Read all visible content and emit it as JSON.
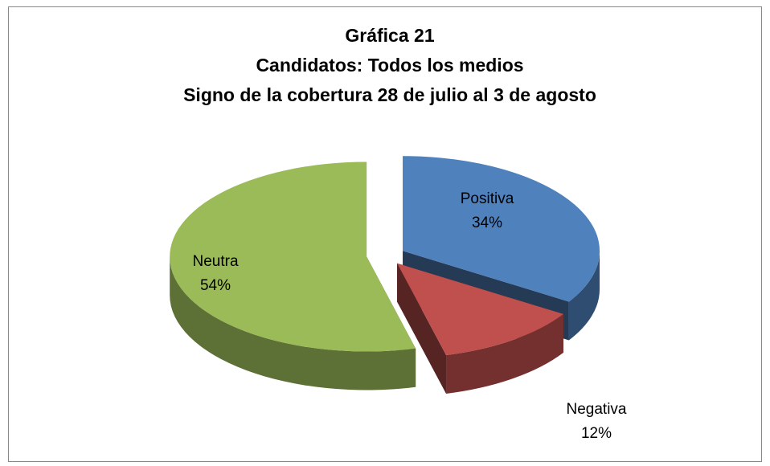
{
  "chart_data": {
    "type": "pie3d",
    "title": [
      "Gráfica 21",
      "Candidatos: Todos los medios",
      "Signo de la cobertura 28 de julio al 3 de agosto"
    ],
    "categories": [
      "Positiva",
      "Negativa",
      "Neutra"
    ],
    "values": [
      34,
      12,
      54
    ],
    "value_labels": [
      "34%",
      "12%",
      "54%"
    ],
    "colors": [
      "#4f81bd",
      "#c0504d",
      "#9bbb59"
    ]
  }
}
